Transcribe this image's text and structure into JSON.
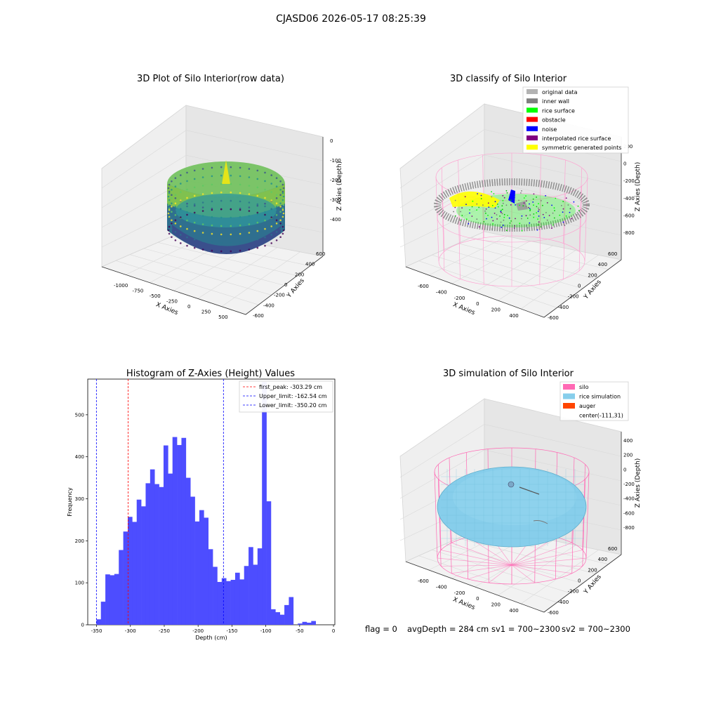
{
  "figure": {
    "suptitle": "CJASD06 2026-05-17 08:25:39",
    "status_line": {
      "flag": "flag = 0",
      "avg_depth": "avgDepth = 284 cm",
      "sv1": "sv1 = 700~2300",
      "sv2": "sv2 = 700~2300"
    }
  },
  "chart_data": [
    {
      "id": "raw",
      "type": "scatter",
      "projection": "3d",
      "title": "3D Plot of Silo Interior(row data)",
      "xlabel": "X Axies",
      "ylabel": "Y Axies",
      "zlabel": "Z Axies (Depth)",
      "x_ticks": [
        "-1000",
        "-750",
        "-500",
        "-250",
        "0",
        "250",
        "500"
      ],
      "y_ticks": [
        "-600",
        "-400",
        "-200",
        "0",
        "200",
        "400",
        "600"
      ],
      "z_ticks": [
        "0",
        "-100",
        "-200",
        "-300",
        "-400"
      ],
      "colormap": "viridis"
    },
    {
      "id": "classify",
      "type": "scatter",
      "projection": "3d",
      "title": "3D classify of Silo Interior",
      "xlabel": "X Axies",
      "ylabel": "Y Axies",
      "zlabel": "Z Axies (Depth)",
      "x_ticks": [
        "-600",
        "-400",
        "-200",
        "0",
        "200",
        "400"
      ],
      "y_ticks": [
        "-600",
        "-400",
        "-200",
        "0",
        "200",
        "400",
        "600"
      ],
      "z_ticks": [
        "200",
        "0",
        "-200",
        "-400",
        "-600",
        "-800"
      ],
      "z_top_partial": "00",
      "legend_position": "top-right",
      "legend": [
        {
          "label": "original data",
          "color": "#b3b3b3"
        },
        {
          "label": "inner wall",
          "color": "#808080"
        },
        {
          "label": "rice surface",
          "color": "#00ff00"
        },
        {
          "label": "obstacle",
          "color": "#ff0000"
        },
        {
          "label": "noise",
          "color": "#0000ff"
        },
        {
          "label": "interpolated rice surface",
          "color": "#800080"
        },
        {
          "label": "symmetric generated points",
          "color": "#ffff00"
        }
      ]
    },
    {
      "id": "histogram",
      "type": "bar",
      "title": "Histogram of Z-Axies (Height) Values",
      "xlabel": "Depth (cm)",
      "ylabel": "Frequency",
      "xlim": [
        -363,
        2
      ],
      "ylim": [
        0,
        585
      ],
      "x_ticks": [
        -350,
        -300,
        -250,
        -200,
        -150,
        -100,
        -50,
        0
      ],
      "y_ticks": [
        0,
        100,
        200,
        300,
        400,
        500
      ],
      "bin_edges_start": -350.2,
      "bin_width": 6.61,
      "bar_color": "#4d4dff",
      "values": [
        13,
        55,
        120,
        118,
        121,
        178,
        222,
        257,
        245,
        298,
        282,
        337,
        370,
        335,
        328,
        427,
        360,
        447,
        428,
        445,
        350,
        305,
        246,
        273,
        255,
        180,
        138,
        102,
        111,
        104,
        107,
        124,
        108,
        140,
        185,
        143,
        182,
        578,
        294,
        37,
        30,
        24,
        47,
        66,
        0,
        3,
        7,
        5,
        9
      ],
      "legend_position": "top-right",
      "vlines": [
        {
          "label": "first_peak: -303.29 cm",
          "x": -303.29,
          "color": "#ff0000"
        },
        {
          "label": "Upper_limit: -162.54 cm",
          "x": -162.54,
          "color": "#0000ff"
        },
        {
          "label": "Lower_limit: -350.20 cm",
          "x": -350.2,
          "color": "#0000ff"
        }
      ]
    },
    {
      "id": "simulation",
      "type": "surface",
      "projection": "3d",
      "title": "3D simulation of Silo Interior",
      "xlabel": "X Axies",
      "ylabel": "Y Axies",
      "zlabel": "Z Axies (Depth)",
      "x_ticks": [
        "-600",
        "-400",
        "-200",
        "0",
        "200",
        "400"
      ],
      "y_ticks": [
        "-600",
        "-400",
        "-200",
        "0",
        "200",
        "400",
        "600"
      ],
      "z_ticks": [
        "400",
        "200",
        "0",
        "-200",
        "-400",
        "-600",
        "-800"
      ],
      "legend_position": "top-right",
      "legend": [
        {
          "label": "silo",
          "color": "#ff69b4"
        },
        {
          "label": "rice simulation",
          "color": "#87ceeb"
        },
        {
          "label": "auger",
          "color": "#ff4500"
        },
        {
          "label": "center(-111,31)",
          "color": ""
        }
      ]
    }
  ]
}
